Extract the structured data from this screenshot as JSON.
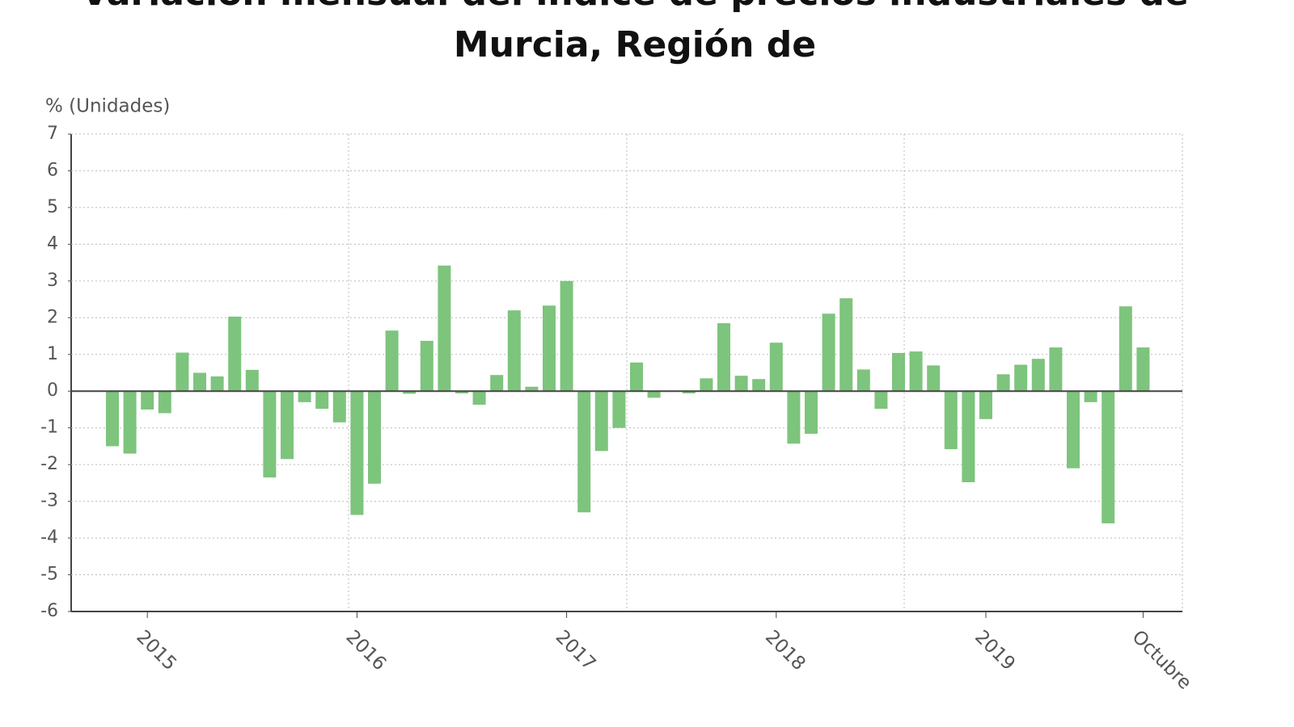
{
  "chart_data": {
    "type": "bar",
    "title": "Variación mensual del índice de precios industriales de Murcia, Región de",
    "y_label": "% (Unidades)",
    "categories": [
      null,
      null,
      "2015",
      null,
      null,
      null,
      null,
      null,
      null,
      null,
      null,
      null,
      null,
      null,
      "2016",
      null,
      null,
      null,
      null,
      null,
      null,
      null,
      null,
      null,
      null,
      null,
      "2017",
      null,
      null,
      null,
      null,
      null,
      null,
      null,
      null,
      null,
      null,
      null,
      "2018",
      null,
      null,
      null,
      null,
      null,
      null,
      null,
      null,
      null,
      null,
      null,
      "2019",
      null,
      null,
      null,
      null,
      null,
      null,
      null,
      null,
      "Octubre"
    ],
    "values": [
      -1.5,
      -1.7,
      -0.5,
      -0.6,
      1.05,
      0.5,
      0.4,
      2.03,
      0.58,
      -2.35,
      -1.85,
      -0.3,
      -0.48,
      -0.85,
      -3.37,
      -2.52,
      1.65,
      -0.07,
      1.37,
      3.42,
      -0.06,
      -0.37,
      0.44,
      2.2,
      0.12,
      2.33,
      3.0,
      -3.3,
      -1.63,
      -1.0,
      0.78,
      -0.18,
      -0.02,
      -0.06,
      0.35,
      1.85,
      0.42,
      0.33,
      1.32,
      -1.43,
      -1.16,
      2.11,
      2.53,
      0.59,
      -0.48,
      1.04,
      1.08,
      0.7,
      -1.58,
      -2.48,
      -0.76,
      0.46,
      0.72,
      0.88,
      1.19,
      -2.1,
      -0.3,
      -3.6,
      2.31,
      1.19
    ],
    "color": "#7dc47d",
    "ylim": [
      -6,
      7
    ],
    "yticks": [
      -6,
      -5,
      -4,
      -3,
      -2,
      -1,
      0,
      1,
      2,
      3,
      4,
      5,
      6,
      7
    ],
    "grid": true
  }
}
